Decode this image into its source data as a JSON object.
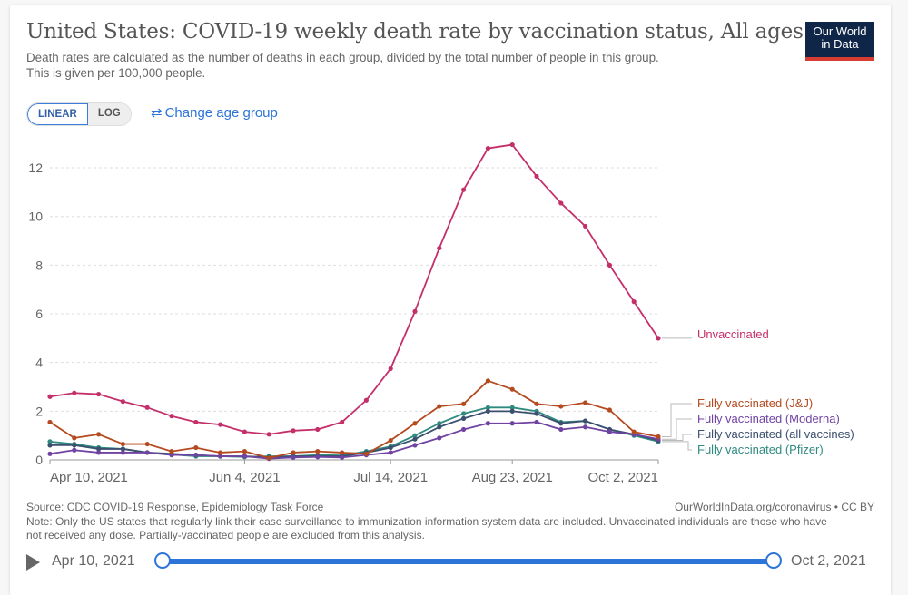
{
  "header": {
    "title": "United States: COVID-19 weekly death rate by vaccination status, All ages",
    "subtitle_line1": "Death rates are calculated as the number of deaths in each group, divided by the total number of people in this group.",
    "subtitle_line2": "This is given per 100,000 people.",
    "logo_line1": "Our World",
    "logo_line2": "in Data"
  },
  "controls": {
    "linear_label": "LINEAR",
    "log_label": "LOG",
    "change_age_label": "Change age group",
    "change_age_icon": "swap-arrows-icon"
  },
  "footer": {
    "source": "Source: CDC COVID-19 Response, Epidemiology Task Force",
    "url": "OurWorldInData.org/coronavirus • CC BY",
    "note": "Note: Only the US states that regularly link their case surveillance to immunization information system data are included. Unvaccinated individuals are those who have not received any dose. Partially-vaccinated people are excluded from this analysis."
  },
  "timeline": {
    "play_icon": "play-icon",
    "start_label": "Apr 10, 2021",
    "end_label": "Oct 2, 2021",
    "accent": "#2c74d8"
  },
  "chart_data": {
    "type": "line",
    "title": "United States: COVID-19 weekly death rate by vaccination status, All ages",
    "xlabel": "",
    "ylabel": "",
    "ylim": [
      0,
      13
    ],
    "yticks": [
      0,
      2,
      4,
      6,
      8,
      10,
      12
    ],
    "grid": true,
    "x": [
      "2021-04-10",
      "2021-04-17",
      "2021-04-24",
      "2021-05-01",
      "2021-05-08",
      "2021-05-15",
      "2021-05-22",
      "2021-05-29",
      "2021-06-05",
      "2021-06-12",
      "2021-06-19",
      "2021-06-26",
      "2021-07-03",
      "2021-07-10",
      "2021-07-17",
      "2021-07-24",
      "2021-07-31",
      "2021-08-07",
      "2021-08-14",
      "2021-08-21",
      "2021-08-28",
      "2021-09-04",
      "2021-09-11",
      "2021-09-18",
      "2021-09-25",
      "2021-10-02"
    ],
    "xtick_labels": [
      {
        "index": 0,
        "label": "Apr 10, 2021"
      },
      {
        "index": 8,
        "label": "Jun 4, 2021"
      },
      {
        "index": 14,
        "label": "Jul 14, 2021"
      },
      {
        "index": 19,
        "label": "Aug 23, 2021"
      },
      {
        "index": 25,
        "label": "Oct 2, 2021"
      }
    ],
    "legend_placement": "right (line-end labels)",
    "series": [
      {
        "name": "Unvaccinated",
        "color": "#c42f6a",
        "values": [
          2.6,
          2.75,
          2.7,
          2.4,
          2.15,
          1.8,
          1.55,
          1.45,
          1.15,
          1.05,
          1.2,
          1.25,
          1.55,
          2.45,
          3.75,
          6.1,
          8.7,
          11.1,
          12.8,
          12.95,
          11.65,
          10.55,
          9.6,
          8.0,
          6.5,
          5.0
        ]
      },
      {
        "name": "Fully vaccinated (J&J)",
        "color": "#b44a1f",
        "values": [
          1.55,
          0.9,
          1.05,
          0.65,
          0.65,
          0.35,
          0.5,
          0.3,
          0.35,
          0.08,
          0.3,
          0.35,
          0.3,
          0.25,
          0.8,
          1.5,
          2.2,
          2.3,
          3.25,
          2.9,
          2.3,
          2.2,
          2.35,
          2.05,
          1.15,
          0.95
        ]
      },
      {
        "name": "Fully vaccinated (Moderna)",
        "color": "#7043a3",
        "values": [
          0.25,
          0.4,
          0.3,
          0.3,
          0.3,
          0.2,
          0.2,
          0.15,
          0.15,
          0.05,
          0.1,
          0.12,
          0.1,
          0.2,
          0.3,
          0.6,
          0.9,
          1.25,
          1.5,
          1.5,
          1.55,
          1.25,
          1.35,
          1.15,
          1.05,
          0.85
        ]
      },
      {
        "name": "Fully vaccinated (all vaccines)",
        "color": "#3b4f6e",
        "values": [
          0.6,
          0.6,
          0.45,
          0.45,
          0.3,
          0.25,
          0.2,
          0.15,
          0.15,
          0.1,
          0.15,
          0.15,
          0.15,
          0.3,
          0.5,
          0.85,
          1.35,
          1.7,
          2.0,
          2.0,
          1.9,
          1.5,
          1.6,
          1.25,
          1.05,
          0.8
        ]
      },
      {
        "name": "Fully vaccinated (Pfizer)",
        "color": "#2f8a80",
        "values": [
          0.75,
          0.65,
          0.5,
          0.45,
          0.3,
          0.22,
          0.15,
          0.15,
          0.12,
          0.15,
          0.15,
          0.2,
          0.18,
          0.35,
          0.55,
          1.0,
          1.5,
          1.9,
          2.15,
          2.15,
          2.0,
          1.55,
          1.6,
          1.25,
          1.0,
          0.75
        ]
      }
    ]
  }
}
